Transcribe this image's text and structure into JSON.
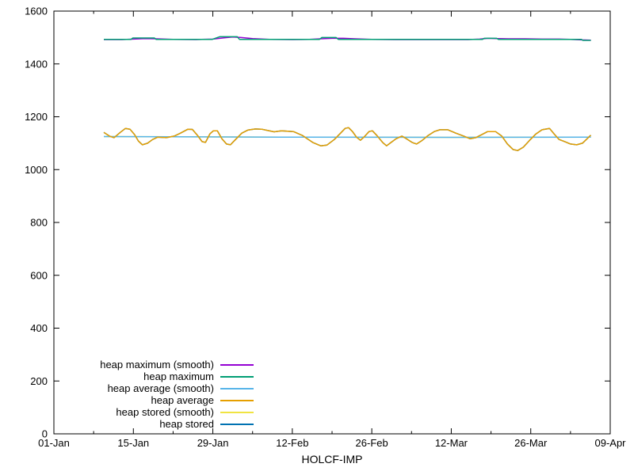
{
  "page": {
    "background": "#ffffff",
    "frame_color": "#000000"
  },
  "chart_data": {
    "type": "line",
    "title": "",
    "xlabel": "HOLCF-IMP",
    "ylabel": "",
    "grid": false,
    "legend_position": "inside-bottom-left",
    "x_axis": {
      "unit": "days-since-01-Jan",
      "range": [
        0,
        98
      ],
      "major_ticks": [
        {
          "pos": 0,
          "label": "01-Jan"
        },
        {
          "pos": 14,
          "label": "15-Jan"
        },
        {
          "pos": 28,
          "label": "29-Jan"
        },
        {
          "pos": 42,
          "label": "12-Feb"
        },
        {
          "pos": 56,
          "label": "26-Feb"
        },
        {
          "pos": 70,
          "label": "12-Mar"
        },
        {
          "pos": 84,
          "label": "26-Mar"
        },
        {
          "pos": 98,
          "label": "09-Apr"
        }
      ],
      "minor_tick_positions": [
        7,
        21,
        35,
        49,
        63,
        77,
        91
      ],
      "ticks_mirrored_on_top": true
    },
    "y_axis": {
      "range": [
        0,
        1600
      ],
      "major_ticks": [
        0,
        200,
        400,
        600,
        800,
        1000,
        1200,
        1400,
        1600
      ],
      "ticks_mirrored_on_right": true
    },
    "series": [
      {
        "name": "heap maximum (smooth)",
        "color": "#9400d3",
        "points": [
          [
            8.8,
            1492
          ],
          [
            12,
            1492
          ],
          [
            14,
            1494
          ],
          [
            16,
            1496
          ],
          [
            18,
            1495
          ],
          [
            21,
            1493
          ],
          [
            25,
            1492
          ],
          [
            28,
            1494
          ],
          [
            30,
            1499
          ],
          [
            31.5,
            1502
          ],
          [
            33,
            1500
          ],
          [
            35,
            1496
          ],
          [
            38,
            1493
          ],
          [
            42,
            1492
          ],
          [
            45,
            1493
          ],
          [
            47,
            1495
          ],
          [
            49,
            1497
          ],
          [
            51,
            1497
          ],
          [
            53,
            1495
          ],
          [
            56,
            1493
          ],
          [
            60,
            1492
          ],
          [
            65,
            1492
          ],
          [
            70,
            1492
          ],
          [
            73,
            1492
          ],
          [
            75,
            1494
          ],
          [
            76.5,
            1497
          ],
          [
            78,
            1496
          ],
          [
            80,
            1495
          ],
          [
            83,
            1495
          ],
          [
            86,
            1494
          ],
          [
            89,
            1494
          ],
          [
            91,
            1493
          ],
          [
            93,
            1491
          ],
          [
            94.6,
            1490
          ]
        ]
      },
      {
        "name": "heap maximum",
        "color": "#009e73",
        "points": [
          [
            8.8,
            1493
          ],
          [
            13.6,
            1493
          ],
          [
            13.9,
            1498
          ],
          [
            17.7,
            1498
          ],
          [
            18.0,
            1493
          ],
          [
            27.9,
            1493
          ],
          [
            28.3,
            1496
          ],
          [
            29.2,
            1503
          ],
          [
            32.3,
            1503
          ],
          [
            32.7,
            1493
          ],
          [
            46.8,
            1493
          ],
          [
            47.2,
            1500
          ],
          [
            49.7,
            1500
          ],
          [
            50.1,
            1493
          ],
          [
            75.5,
            1493
          ],
          [
            75.8,
            1497
          ],
          [
            78.0,
            1497
          ],
          [
            78.3,
            1493
          ],
          [
            92.9,
            1493
          ],
          [
            93.2,
            1489
          ],
          [
            94.6,
            1489
          ]
        ]
      },
      {
        "name": "heap average (smooth)",
        "color": "#56b4e9",
        "points": [
          [
            8.8,
            1125
          ],
          [
            40,
            1123
          ],
          [
            70,
            1122
          ],
          [
            94.6,
            1123
          ]
        ]
      },
      {
        "name": "heap average",
        "color": "#e69f00",
        "points": [
          [
            8.8,
            1141
          ],
          [
            9.8,
            1127
          ],
          [
            10.6,
            1121
          ],
          [
            11.7,
            1141
          ],
          [
            12.6,
            1156
          ],
          [
            13.4,
            1153
          ],
          [
            14.2,
            1133
          ],
          [
            14.9,
            1108
          ],
          [
            15.6,
            1094
          ],
          [
            16.5,
            1100
          ],
          [
            17.4,
            1114
          ],
          [
            18.3,
            1123
          ],
          [
            19.8,
            1121
          ],
          [
            21.2,
            1127
          ],
          [
            22.3,
            1138
          ],
          [
            23.6,
            1153
          ],
          [
            24.4,
            1152
          ],
          [
            25.4,
            1127
          ],
          [
            26.1,
            1106
          ],
          [
            26.7,
            1103
          ],
          [
            27.5,
            1136
          ],
          [
            28.1,
            1147
          ],
          [
            28.8,
            1147
          ],
          [
            29.6,
            1117
          ],
          [
            30.4,
            1097
          ],
          [
            31.1,
            1094
          ],
          [
            32.0,
            1114
          ],
          [
            33.1,
            1138
          ],
          [
            34.2,
            1150
          ],
          [
            35.5,
            1154
          ],
          [
            36.6,
            1153
          ],
          [
            37.7,
            1148
          ],
          [
            38.8,
            1143
          ],
          [
            40.1,
            1147
          ],
          [
            42.2,
            1144
          ],
          [
            43.8,
            1129
          ],
          [
            45.6,
            1103
          ],
          [
            47.0,
            1090
          ],
          [
            48.1,
            1093
          ],
          [
            49.4,
            1114
          ],
          [
            50.5,
            1138
          ],
          [
            51.3,
            1156
          ],
          [
            51.9,
            1159
          ],
          [
            52.6,
            1144
          ],
          [
            53.3,
            1123
          ],
          [
            54.0,
            1111
          ],
          [
            54.8,
            1127
          ],
          [
            55.5,
            1144
          ],
          [
            56.1,
            1147
          ],
          [
            56.9,
            1129
          ],
          [
            57.9,
            1103
          ],
          [
            58.6,
            1090
          ],
          [
            59.4,
            1103
          ],
          [
            60.3,
            1117
          ],
          [
            61.3,
            1127
          ],
          [
            62.1,
            1117
          ],
          [
            63.1,
            1103
          ],
          [
            63.9,
            1097
          ],
          [
            64.9,
            1111
          ],
          [
            65.9,
            1129
          ],
          [
            67.0,
            1144
          ],
          [
            68.0,
            1151
          ],
          [
            69.4,
            1151
          ],
          [
            70.8,
            1138
          ],
          [
            72.2,
            1127
          ],
          [
            73.3,
            1117
          ],
          [
            74.3,
            1121
          ],
          [
            75.4,
            1133
          ],
          [
            76.4,
            1144
          ],
          [
            77.8,
            1144
          ],
          [
            78.9,
            1127
          ],
          [
            79.9,
            1097
          ],
          [
            80.9,
            1076
          ],
          [
            81.7,
            1072
          ],
          [
            82.7,
            1085
          ],
          [
            83.8,
            1111
          ],
          [
            84.9,
            1135
          ],
          [
            86.0,
            1151
          ],
          [
            87.3,
            1156
          ],
          [
            88.2,
            1133
          ],
          [
            89.0,
            1114
          ],
          [
            90.0,
            1106
          ],
          [
            91.0,
            1097
          ],
          [
            92.1,
            1094
          ],
          [
            93.1,
            1100
          ],
          [
            93.8,
            1114
          ],
          [
            94.4,
            1127
          ],
          [
            94.6,
            1130
          ]
        ]
      },
      {
        "name": "heap stored (smooth)",
        "color": "#f0e442",
        "coincides_with": "heap average (smooth)",
        "note": "not separately visible; hidden beneath heap average (smooth)"
      },
      {
        "name": "heap stored",
        "color": "#0072b2",
        "coincides_with": "heap average",
        "note": "not separately visible; hidden beneath heap average"
      }
    ],
    "draw_order": [
      "heap stored (smooth)",
      "heap stored",
      "heap average (smooth)",
      "heap average",
      "heap maximum (smooth)",
      "heap maximum"
    ]
  }
}
